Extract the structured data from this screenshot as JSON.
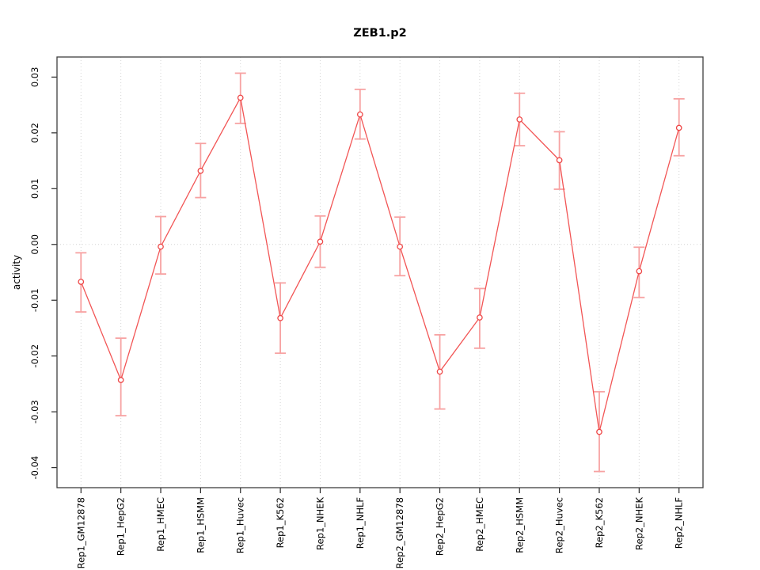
{
  "chart_data": {
    "type": "line",
    "title": "ZEB1.p2",
    "xlabel": "",
    "ylabel": "activity",
    "categories": [
      "Rep1_GM12878",
      "Rep1_HepG2",
      "Rep1_HMEC",
      "Rep1_HSMM",
      "Rep1_Huvec",
      "Rep1_K562",
      "Rep1_NHEK",
      "Rep1_NHLF",
      "Rep2_GM12878",
      "Rep2_HepG2",
      "Rep2_HMEC",
      "Rep2_HSMM",
      "Rep2_Huvec",
      "Rep2_K562",
      "Rep2_NHEK",
      "Rep2_NHLF"
    ],
    "series": [
      {
        "name": "activity",
        "marker": "open-circle",
        "values": [
          -0.0067,
          -0.0243,
          -0.0004,
          0.0132,
          0.0263,
          -0.0132,
          0.0005,
          0.0233,
          -0.0004,
          -0.0228,
          -0.0131,
          0.0224,
          0.0151,
          -0.0336,
          -0.0048,
          0.0209
        ],
        "err_low": [
          -0.0121,
          -0.0307,
          -0.0053,
          0.0084,
          0.0217,
          -0.0195,
          -0.0041,
          0.0189,
          -0.0056,
          -0.0295,
          -0.0186,
          0.0177,
          0.0099,
          -0.0407,
          -0.0095,
          0.0159
        ],
        "err_high": [
          -0.0015,
          -0.0168,
          0.005,
          0.0181,
          0.0307,
          -0.0069,
          0.0051,
          0.0278,
          0.0049,
          -0.0162,
          -0.0079,
          0.0271,
          0.0202,
          -0.0264,
          -0.0005,
          0.0261
        ]
      }
    ],
    "ylim": [
      -0.0436,
      0.0336
    ],
    "yticks": [
      -0.04,
      -0.03,
      -0.02,
      -0.01,
      0.0,
      0.01,
      0.02,
      0.03
    ],
    "ytick_format_decimals": 2,
    "reference_line_y": 0,
    "grid": {
      "vertical_dotted_per_category": true,
      "horizontal_dotted_at_zero": true
    },
    "legend": "none",
    "colors": {
      "line": "#f25555",
      "marker_stroke": "#ee4747",
      "marker_fill": "#ffffff",
      "error_bar": "#f7a2a2",
      "grid": "#d6d6d6",
      "frame": "#3f3f3f",
      "tick": "#2a2a2a",
      "text": "#000000",
      "background": "#ffffff"
    }
  }
}
